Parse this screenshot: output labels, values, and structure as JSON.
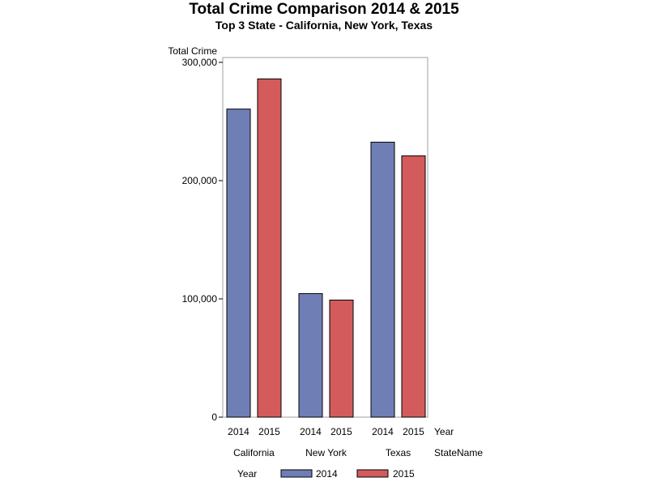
{
  "title": "Total Crime Comparison 2014 & 2015",
  "subtitle": "Top 3 State - California, New York, Texas",
  "chart_data": {
    "type": "bar",
    "title": "Total Crime Comparison 2014 & 2015",
    "subtitle": "Top 3 State - California, New York, Texas",
    "ylabel": "Total Crime",
    "ylim": [
      0,
      300000
    ],
    "yticks": [
      0,
      100000,
      200000,
      300000
    ],
    "ytick_labels": [
      "0",
      "100,000",
      "200,000",
      "300,000"
    ],
    "x_level_labels": [
      "Year",
      "StateName"
    ],
    "groups": [
      {
        "name": "California",
        "bars": [
          {
            "year": "2014",
            "value": 260500
          },
          {
            "year": "2015",
            "value": 286000
          }
        ]
      },
      {
        "name": "New York",
        "bars": [
          {
            "year": "2014",
            "value": 104500
          },
          {
            "year": "2015",
            "value": 99000
          }
        ]
      },
      {
        "name": "Texas",
        "bars": [
          {
            "year": "2014",
            "value": 232500
          },
          {
            "year": "2015",
            "value": 221000
          }
        ]
      }
    ],
    "categories": [
      "California",
      "New York",
      "Texas"
    ],
    "series": [
      {
        "name": "2014",
        "color": "#6f7fb6",
        "values": [
          260500,
          104500,
          232500
        ]
      },
      {
        "name": "2015",
        "color": "#d35b5b",
        "values": [
          286000,
          99000,
          221000
        ]
      }
    ],
    "legend": {
      "title": "Year",
      "position": "bottom",
      "items": [
        "2014",
        "2015"
      ]
    },
    "grid": false
  }
}
